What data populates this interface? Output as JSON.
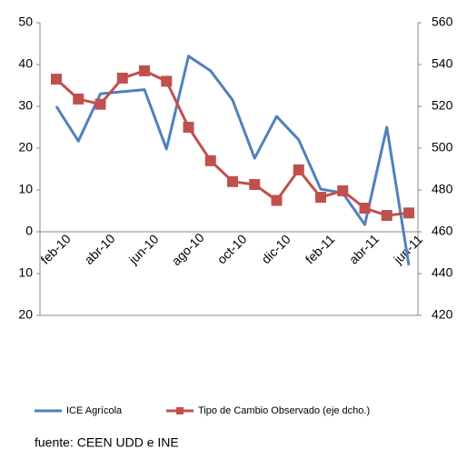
{
  "chart_data": {
    "type": "line",
    "categories": [
      "feb-10",
      null,
      "abr-10",
      null,
      "jun-10",
      null,
      "ago-10",
      null,
      "oct-10",
      null,
      "dic-10",
      null,
      "feb-11",
      null,
      "abr-11",
      null,
      "jun-11"
    ],
    "series": [
      {
        "name": "ICE Agrícola",
        "color": "#4f81bd",
        "values": [
          30,
          21.7,
          33,
          33.5,
          34,
          19.8,
          42,
          38.5,
          31.5,
          17.6,
          27.6,
          22,
          10.2,
          9.3,
          1.7,
          25,
          -8
        ]
      },
      {
        "name": "Tipo de Cambio Observado (eje dcho.)",
        "color": "#c0504d",
        "axis": "y2",
        "values": [
          533,
          523.5,
          521,
          533.5,
          537,
          532,
          510,
          494,
          484,
          482.6,
          475,
          489.6,
          476.5,
          479.6,
          471.3,
          467.8,
          469
        ]
      }
    ],
    "ylim": [
      -20,
      50
    ],
    "yticks": [
      {
        "value": -20,
        "label": "20"
      },
      {
        "value": -10,
        "label": "10"
      },
      0,
      10,
      20,
      30,
      40,
      50
    ],
    "y2lim": [
      420,
      560
    ],
    "y2ticks": [
      420,
      440,
      460,
      480,
      500,
      520,
      540,
      560
    ],
    "grid": false,
    "legend": "bottom",
    "source": "fuente: CEEN UDD e INE"
  }
}
